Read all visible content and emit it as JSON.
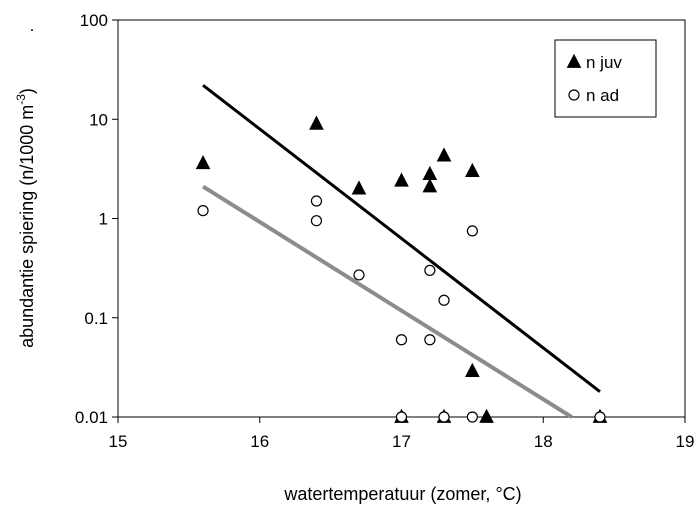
{
  "chart_data": {
    "type": "scatter",
    "xlabel": "watertemperatuur  (zomer, °C)",
    "ylabel_prefix": "abundantie spiering (n/1000 m",
    "ylabel_sup": "-3",
    "ylabel_suffix": ")",
    "stray_mark": ".",
    "xlim": [
      15,
      19
    ],
    "ylim": [
      0.01,
      100
    ],
    "yscale": "log",
    "grid": false,
    "legend_position": "top-right",
    "x_ticks": [
      "15",
      "16",
      "17",
      "18",
      "19"
    ],
    "y_ticks": [
      "0.01",
      "0.1",
      "1",
      "10",
      "100"
    ],
    "series": [
      {
        "name": "n juv",
        "marker": "filled-triangle",
        "color": "#000000",
        "points": [
          {
            "x": 15.6,
            "y": 3.6
          },
          {
            "x": 16.4,
            "y": 9.0
          },
          {
            "x": 16.7,
            "y": 2.0
          },
          {
            "x": 17.0,
            "y": 2.4
          },
          {
            "x": 17.0,
            "y": 0.01
          },
          {
            "x": 17.2,
            "y": 2.8
          },
          {
            "x": 17.2,
            "y": 2.1
          },
          {
            "x": 17.3,
            "y": 4.3
          },
          {
            "x": 17.3,
            "y": 0.01
          },
          {
            "x": 17.5,
            "y": 3.0
          },
          {
            "x": 17.5,
            "y": 0.029
          },
          {
            "x": 17.6,
            "y": 0.01
          },
          {
            "x": 18.4,
            "y": 0.01
          }
        ],
        "trendline": {
          "x": [
            15.6,
            18.4
          ],
          "y": [
            22,
            0.018
          ],
          "color": "#000000"
        }
      },
      {
        "name": "n ad",
        "marker": "open-circle",
        "color": "#000000",
        "points": [
          {
            "x": 15.6,
            "y": 1.2
          },
          {
            "x": 16.4,
            "y": 1.5
          },
          {
            "x": 16.4,
            "y": 0.95
          },
          {
            "x": 16.7,
            "y": 0.27
          },
          {
            "x": 17.0,
            "y": 0.06
          },
          {
            "x": 17.0,
            "y": 0.01
          },
          {
            "x": 17.2,
            "y": 0.3
          },
          {
            "x": 17.2,
            "y": 0.06
          },
          {
            "x": 17.3,
            "y": 0.15
          },
          {
            "x": 17.3,
            "y": 0.01
          },
          {
            "x": 17.5,
            "y": 0.75
          },
          {
            "x": 17.5,
            "y": 0.01
          },
          {
            "x": 18.4,
            "y": 0.01
          }
        ],
        "trendline": {
          "x": [
            15.6,
            18.2
          ],
          "y": [
            2.1,
            0.01
          ],
          "color": "#8c8c8c"
        }
      }
    ]
  }
}
